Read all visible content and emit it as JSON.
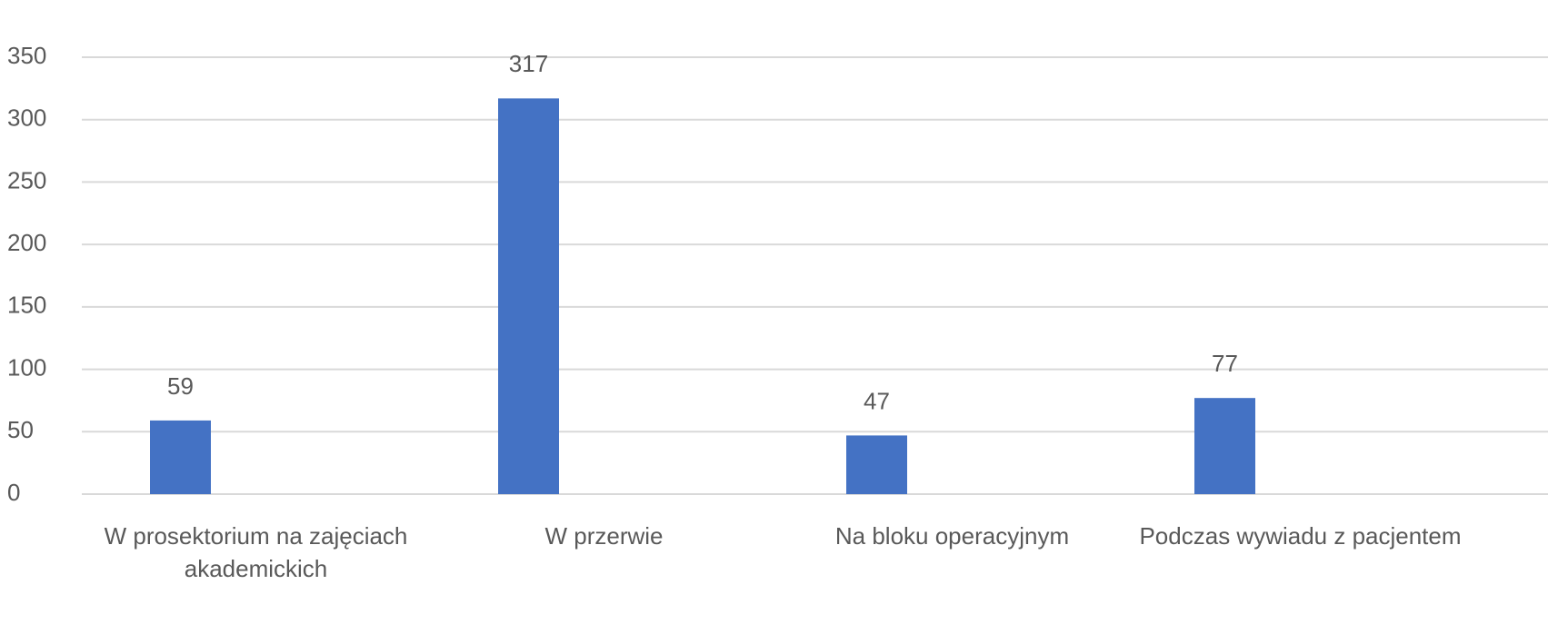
{
  "chart_data": {
    "type": "bar",
    "categories": [
      "W prosektorium na zajęciach akademickich",
      "W przerwie",
      "Na bloku operacyjnym",
      "Podczas wywiadu z pacjentem"
    ],
    "values": [
      59,
      317,
      47,
      77
    ],
    "color": "#4472c4",
    "ylim": [
      0,
      350
    ],
    "yticks": [
      0,
      50,
      100,
      150,
      200,
      250,
      300,
      350
    ],
    "grid": true
  }
}
